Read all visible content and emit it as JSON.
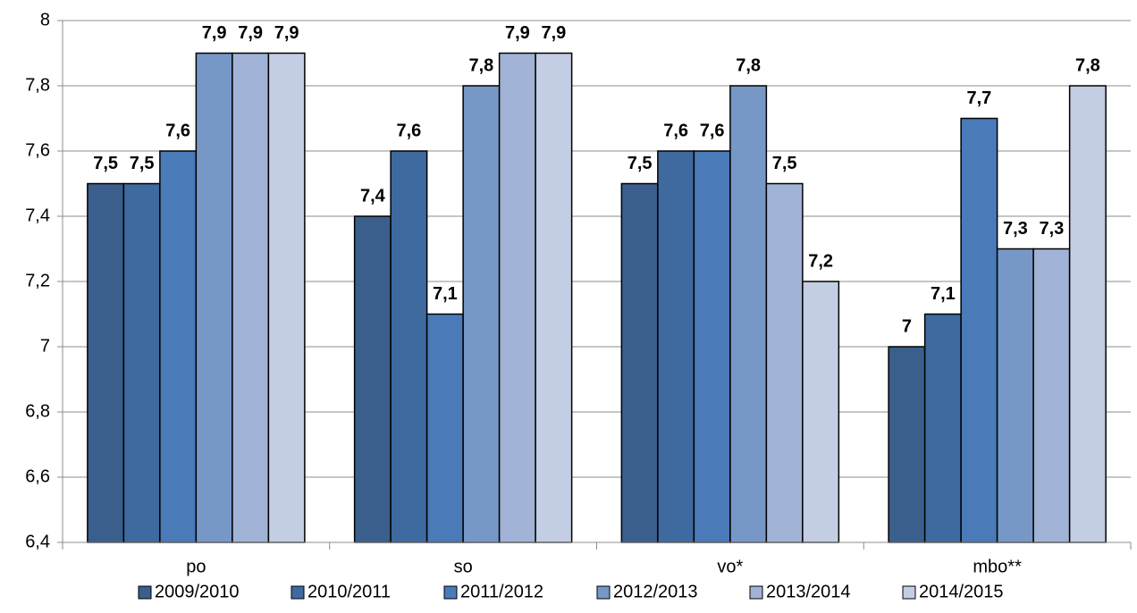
{
  "chart_data": {
    "type": "bar",
    "categories": [
      "po",
      "so",
      "vo*",
      "mbo**"
    ],
    "series": [
      {
        "name": "2009/2010",
        "color": "#3a5f8c",
        "values": [
          7.5,
          7.4,
          7.5,
          7.0
        ],
        "value_labels": [
          "7,5",
          "7,4",
          "7,5",
          "7"
        ]
      },
      {
        "name": "2010/2011",
        "color": "#3e6aa0",
        "values": [
          7.5,
          7.6,
          7.6,
          7.1
        ],
        "value_labels": [
          "7,5",
          "7,6",
          "7,6",
          "7,1"
        ]
      },
      {
        "name": "2011/2012",
        "color": "#4a7ab8",
        "values": [
          7.6,
          7.1,
          7.6,
          7.7
        ],
        "value_labels": [
          "7,6",
          "7,1",
          "7,6",
          "7,7"
        ]
      },
      {
        "name": "2012/2013",
        "color": "#7797c7",
        "values": [
          7.9,
          7.8,
          7.8,
          7.3
        ],
        "value_labels": [
          "7,9",
          "7,8",
          "7,8",
          "7,3"
        ]
      },
      {
        "name": "2013/2014",
        "color": "#a0b3d6",
        "values": [
          7.9,
          7.9,
          7.5,
          7.3
        ],
        "value_labels": [
          "7,9",
          "7,9",
          "7,5",
          "7,3"
        ]
      },
      {
        "name": "2014/2015",
        "color": "#c3cde3",
        "values": [
          7.9,
          7.9,
          7.2,
          7.8
        ],
        "value_labels": [
          "7,9",
          "7,9",
          "7,2",
          "7,8"
        ]
      }
    ],
    "ylim": [
      6.4,
      8
    ],
    "yticks": [
      {
        "value": 6.4,
        "label": "6,4"
      },
      {
        "value": 6.6,
        "label": "6,6"
      },
      {
        "value": 6.8,
        "label": "6,8"
      },
      7,
      {
        "value": 7.2,
        "label": "7,2"
      },
      {
        "value": 7.4,
        "label": "7,4"
      },
      {
        "value": 7.6,
        "label": "7,6"
      },
      {
        "value": 7.8,
        "label": "7,8"
      },
      8
    ],
    "grid": true,
    "legend": "bottom"
  }
}
